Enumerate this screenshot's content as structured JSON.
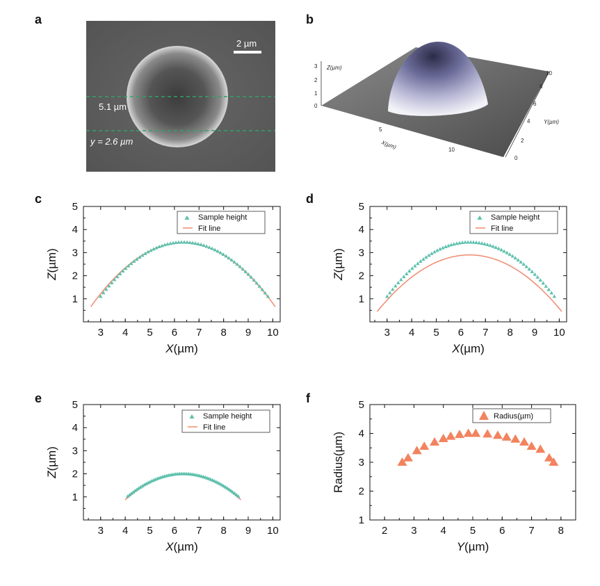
{
  "panels": {
    "a": "a",
    "b": "b",
    "c": "c",
    "d": "d",
    "e": "e",
    "f": "f"
  },
  "sem": {
    "scale_label": "2 µm",
    "line1_label": "5.1 µm",
    "line2_label": "y = 2.6 µm"
  },
  "surface3d": {
    "z_axis_label": "Z(µm)",
    "x_axis_label": "X(µm)",
    "y_axis_label": "Y(µm)",
    "z_ticks": [
      "0",
      "1",
      "2",
      "3"
    ],
    "x_ticks": [
      "5",
      "10"
    ],
    "y_ticks": [
      "0",
      "2",
      "4",
      "6",
      "8",
      "10"
    ]
  },
  "legend": {
    "sample_height": "Sample height",
    "fit_line": "Fit line",
    "radius": "Radius(µm)"
  },
  "colors": {
    "sample": "#5dc1ad",
    "fit": "#f08a6e",
    "radius": "#f2835f"
  },
  "chart_data": [
    {
      "id": "c",
      "type": "scatter",
      "xlabel": "X(µm)",
      "ylabel": "Z(µm)",
      "xlim": [
        2.3,
        10.3
      ],
      "ylim": [
        0,
        5
      ],
      "xticks": [
        3,
        4,
        5,
        6,
        7,
        8,
        9,
        10
      ],
      "yticks": [
        1,
        2,
        3,
        4,
        5
      ],
      "sample": {
        "x0": 3.0,
        "x1": 9.8,
        "center": 6.35,
        "peak": 3.45,
        "bottom": 1.05
      },
      "fit": {
        "x0": 2.6,
        "x1": 10.1,
        "center": 6.35,
        "peak": 3.43,
        "bottom": 0.6
      },
      "series": [
        {
          "name": "Sample height"
        },
        {
          "name": "Fit line"
        }
      ]
    },
    {
      "id": "d",
      "type": "scatter",
      "xlabel": "X(µm)",
      "ylabel": "Z(µm)",
      "xlim": [
        2.3,
        10.3
      ],
      "ylim": [
        0,
        5
      ],
      "xticks": [
        3,
        4,
        5,
        6,
        7,
        8,
        9,
        10
      ],
      "yticks": [
        1,
        2,
        3,
        4,
        5
      ],
      "sample": {
        "x0": 3.0,
        "x1": 9.8,
        "center": 6.35,
        "peak": 3.45,
        "bottom": 1.05
      },
      "fit": {
        "x0": 2.6,
        "x1": 10.1,
        "center": 6.35,
        "peak": 2.9,
        "bottom": 0.4
      },
      "series": [
        {
          "name": "Sample height"
        },
        {
          "name": "Fit line"
        }
      ]
    },
    {
      "id": "e",
      "type": "scatter",
      "xlabel": "X(µm)",
      "ylabel": "Z(µm)",
      "xlim": [
        2.3,
        10.3
      ],
      "ylim": [
        0,
        5
      ],
      "xticks": [
        3,
        4,
        5,
        6,
        7,
        8,
        9,
        10
      ],
      "yticks": [
        1,
        2,
        3,
        4,
        5
      ],
      "sample": {
        "x0": 4.1,
        "x1": 8.6,
        "center": 6.35,
        "peak": 2.0,
        "bottom": 1.0
      },
      "fit": {
        "x0": 4.0,
        "x1": 8.7,
        "center": 6.35,
        "peak": 1.98,
        "bottom": 0.85
      },
      "series": [
        {
          "name": "Sample height"
        },
        {
          "name": "Fit line"
        }
      ]
    },
    {
      "id": "f",
      "type": "scatter",
      "xlabel": "Y(µm)",
      "ylabel": "Radius(µm)",
      "xlim": [
        1.5,
        8.5
      ],
      "ylim": [
        1,
        5
      ],
      "xticks": [
        2,
        3,
        4,
        5,
        6,
        7,
        8
      ],
      "yticks": [
        1,
        2,
        3,
        4,
        5
      ],
      "series": [
        {
          "name": "Radius(µm)",
          "x": [
            2.6,
            2.8,
            3.1,
            3.35,
            3.7,
            4.0,
            4.25,
            4.55,
            4.85,
            5.1,
            5.5,
            5.85,
            6.15,
            6.45,
            6.75,
            7.0,
            7.3,
            7.6,
            7.75
          ],
          "y": [
            3.0,
            3.15,
            3.4,
            3.55,
            3.7,
            3.82,
            3.9,
            3.96,
            4.0,
            4.0,
            3.98,
            3.93,
            3.87,
            3.8,
            3.7,
            3.55,
            3.45,
            3.15,
            3.0
          ]
        }
      ]
    }
  ]
}
